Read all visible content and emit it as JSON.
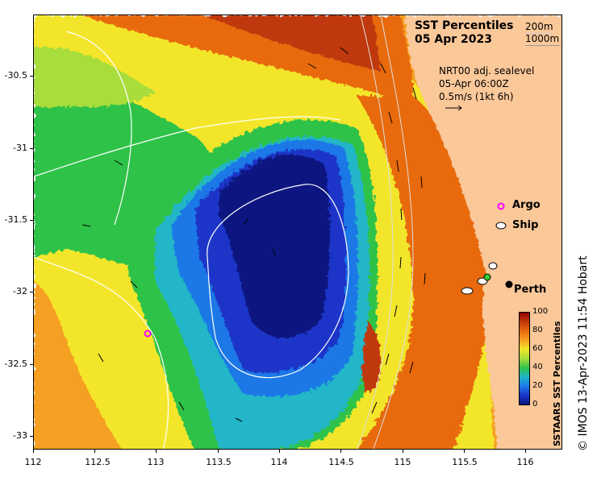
{
  "title": {
    "line1": "SST Percentiles",
    "line2": "05 Apr 2023"
  },
  "depth_legend": {
    "shallow": "200m",
    "deep": "1000m"
  },
  "sealevel_info": {
    "line1": "NRT00 adj. sealevel",
    "line2": "05-Apr 06:00Z",
    "line3": "0.5m/s (1kt 6h)"
  },
  "legend": {
    "argo": "Argo",
    "ship": "Ship"
  },
  "city": {
    "name": "Perth"
  },
  "colorbar": {
    "title": "SSTAARS SST Percentiles",
    "ticks": [
      "100",
      "80",
      "60",
      "40",
      "20",
      "0"
    ]
  },
  "copyright": "© IMOS 13-Apr-2023 11:54 Hobart",
  "axes": {
    "y_ticks": [
      "-30.5",
      "-31",
      "-31.5",
      "-32",
      "-32.5",
      "-33"
    ],
    "x_ticks": [
      "112",
      "112.5",
      "113",
      "113.5",
      "114",
      "114.5",
      "115",
      "115.5",
      "116"
    ]
  },
  "colors": {
    "land": "#fbc89a",
    "p100": "#8b0000",
    "p80": "#e86a10",
    "p70": "#f5a020",
    "p60": "#f3e62a",
    "p50": "#a8dd3a",
    "p40": "#2fc24a",
    "p30": "#20b6c8",
    "p20": "#1e78e6",
    "p10": "#1a36c8",
    "p0": "#0a1480",
    "argo": "#ff00ff",
    "green_ship": "#33cc33"
  }
}
